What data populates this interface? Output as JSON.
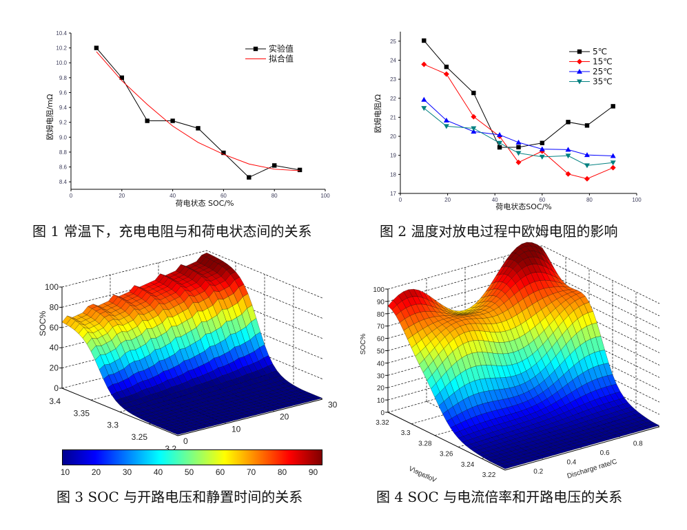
{
  "figures": [
    {
      "caption": "图 1  常温下，充电电阻与和荷电状态间的关系",
      "chart_data": {
        "type": "line",
        "xlabel": "荷电状态  SOC/%",
        "ylabel": "欧姆电阻/mΩ",
        "xlim": [
          0,
          100
        ],
        "ylim": [
          8.3,
          10.4
        ],
        "xticks": [
          0,
          20,
          40,
          60,
          80,
          100
        ],
        "yticks": [
          8.4,
          8.6,
          8.8,
          9.0,
          9.2,
          9.4,
          9.6,
          9.8,
          10.0,
          10.2,
          10.4
        ],
        "legend_position": "top-right",
        "series": [
          {
            "name": "实验值",
            "color": "#000000",
            "marker": "square",
            "x": [
              10,
              20,
              30,
              40,
              50,
              60,
              70,
              80,
              90
            ],
            "y": [
              10.2,
              9.8,
              9.22,
              9.22,
              9.12,
              8.79,
              8.46,
              8.62,
              8.56
            ]
          },
          {
            "name": "拟合值",
            "color": "#ff0000",
            "marker": "none",
            "x": [
              10,
              20,
              30,
              40,
              50,
              60,
              70,
              80,
              90
            ],
            "y": [
              10.15,
              9.76,
              9.44,
              9.15,
              8.93,
              8.77,
              8.64,
              8.57,
              8.55
            ]
          }
        ]
      }
    },
    {
      "caption": "图 2 温度对放电过程中欧姆电阻的影响",
      "chart_data": {
        "type": "line",
        "xlabel": "荷电状态SOC/%",
        "ylabel": "欧姆电阻/Ω",
        "xlim": [
          0,
          100
        ],
        "ylim": [
          17,
          25.5
        ],
        "xticks": [
          0,
          20,
          40,
          60,
          80,
          100
        ],
        "yticks": [
          17,
          18,
          19,
          20,
          21,
          22,
          23,
          24,
          25
        ],
        "legend_position": "top-right",
        "series": [
          {
            "name": "5℃",
            "color": "#000000",
            "marker": "square",
            "x": [
              10,
              19.5,
              31,
              42,
              50,
              60,
              71,
              79,
              90
            ],
            "y": [
              25.03,
              23.65,
              22.28,
              19.42,
              19.43,
              19.65,
              20.75,
              20.57,
              21.58
            ]
          },
          {
            "name": "15℃",
            "color": "#ff0000",
            "marker": "diamond",
            "x": [
              10,
              19.5,
              31,
              42,
              50,
              60,
              71,
              79,
              90
            ],
            "y": [
              23.78,
              23.27,
              21.03,
              20.0,
              18.63,
              19.22,
              18.02,
              17.77,
              18.35
            ]
          },
          {
            "name": "25℃",
            "color": "#0000ff",
            "marker": "triangle-up",
            "x": [
              10,
              19.5,
              31,
              42,
              50,
              60,
              71,
              79,
              90
            ],
            "y": [
              21.93,
              20.84,
              20.25,
              20.08,
              19.68,
              19.33,
              19.3,
              19.02,
              18.97
            ]
          },
          {
            "name": "35℃",
            "color": "#008080",
            "marker": "triangle-down",
            "x": [
              10,
              19.5,
              31,
              42,
              50,
              60,
              71,
              79,
              90
            ],
            "y": [
              21.48,
              20.53,
              20.42,
              19.65,
              19.12,
              18.92,
              18.98,
              18.47,
              18.62
            ]
          }
        ]
      }
    },
    {
      "caption": "图 3 SOC 与开路电压和静置时间的关系",
      "chart_data": {
        "type": "surface",
        "zlabel": "SOC%",
        "colormap": "jet",
        "zlim": [
          0,
          100
        ],
        "zticks": [
          0,
          20,
          40,
          60,
          80,
          100
        ],
        "xlim": [
          3.4,
          3.2
        ],
        "xticks": [
          3.4,
          3.35,
          3.3,
          3.25,
          3.2
        ],
        "ylim": [
          0,
          30
        ],
        "yticks": [
          0,
          10,
          20,
          30
        ],
        "colorbar_ticks": [
          10,
          20,
          30,
          40,
          50,
          60,
          70,
          80,
          90
        ],
        "colorbar_range": [
          9,
          93
        ],
        "grid": true
      }
    },
    {
      "caption": "图 4 SOC 与电流倍率和开路电压的关系",
      "chart_data": {
        "type": "surface",
        "zlabel": "SOC%",
        "xlabel": "Voltage/V",
        "ylabel": "Discharge rate/C",
        "colormap": "jet",
        "zlim": [
          0,
          100
        ],
        "zticks": [
          0,
          10,
          20,
          30,
          40,
          50,
          60,
          70,
          80,
          90,
          100
        ],
        "xlim": [
          3.325,
          3.215
        ],
        "xticks": [
          3.32,
          3.3,
          3.28,
          3.26,
          3.24,
          3.22
        ],
        "ylim": [
          0.07,
          1.0
        ],
        "yticks": [
          0.2,
          0.4,
          0.6,
          0.8
        ],
        "grid": true
      }
    }
  ]
}
